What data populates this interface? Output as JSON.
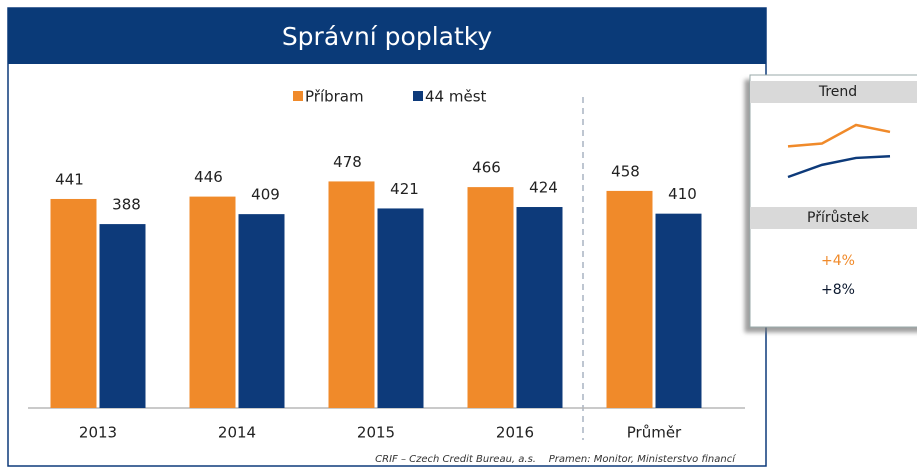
{
  "chart_data": {
    "type": "bar",
    "title": "Správní poplatky",
    "categories": [
      "2013",
      "2014",
      "2015",
      "2016",
      "Průměr"
    ],
    "series": [
      {
        "name": "Příbram",
        "color": "#f08a2a",
        "values": [
          441,
          446,
          478,
          466,
          458
        ]
      },
      {
        "name": "44 měst",
        "color": "#0d3a7a",
        "values": [
          388,
          409,
          421,
          424,
          410
        ]
      }
    ],
    "ylim": [
      0,
      500
    ],
    "legend": "top",
    "source": "CRIF – Czech Credit Bureau, a.s.    Pramen: Monitor, Ministerstvo financí",
    "panel": {
      "trend_title": "Trend",
      "growth_title": "Přírůstek",
      "growth": {
        "values": [
          4,
          8
        ],
        "value_labels": [
          "+4%",
          "+8%"
        ],
        "colors": [
          "#f08a2a",
          "#0d1a30"
        ]
      }
    }
  }
}
